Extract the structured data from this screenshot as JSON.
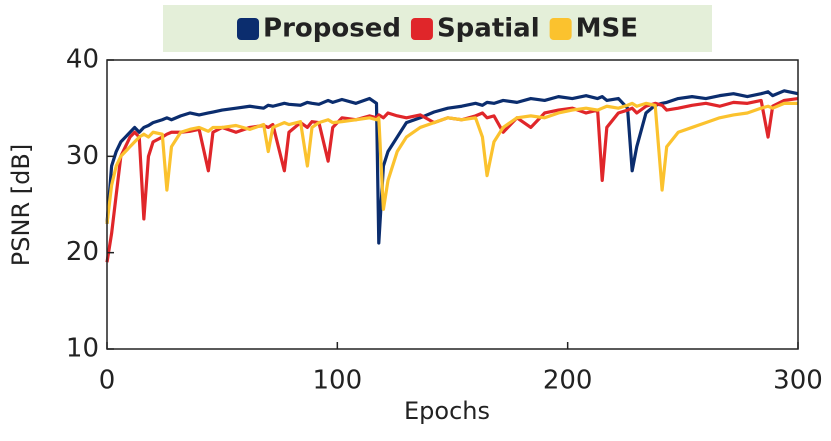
{
  "chart_data": {
    "type": "line",
    "xlabel": "Epochs",
    "ylabel": "PSNR [dB]",
    "legend": "top",
    "xlim": [
      0,
      300
    ],
    "xticks": [
      0,
      100,
      200,
      300
    ],
    "ylim": [
      10,
      40
    ],
    "yticks": [
      10,
      20,
      30,
      40
    ],
    "x": [
      0,
      2,
      4,
      6,
      8,
      10,
      12,
      14,
      16,
      18,
      20,
      24,
      26,
      28,
      32,
      36,
      40,
      44,
      46,
      50,
      56,
      62,
      68,
      70,
      72,
      77,
      79,
      84,
      87,
      89,
      92,
      96,
      98,
      102,
      108,
      114,
      117,
      118,
      120,
      122,
      126,
      130,
      136,
      142,
      148,
      154,
      160,
      163,
      165,
      168,
      172,
      178,
      184,
      190,
      196,
      202,
      208,
      213,
      215,
      217,
      222,
      226,
      228,
      230,
      234,
      238,
      241,
      243,
      248,
      254,
      260,
      266,
      272,
      278,
      284,
      287,
      289,
      294,
      300
    ],
    "series": [
      {
        "name": "Proposed",
        "color": "#0b2d6e",
        "values": [
          23,
          29,
          30.5,
          31.5,
          32,
          32.5,
          33,
          32.5,
          33,
          33.2,
          33.5,
          33.8,
          34,
          33.8,
          34.2,
          34.5,
          34.3,
          34.5,
          34.6,
          34.8,
          35,
          35.2,
          35,
          35.3,
          35.2,
          35.5,
          35.4,
          35.3,
          35.6,
          35.5,
          35.4,
          35.8,
          35.6,
          35.9,
          35.5,
          36,
          35.5,
          21,
          29,
          30.5,
          32,
          33.5,
          34,
          34.6,
          35,
          35.2,
          35.5,
          35.3,
          35.6,
          35.5,
          35.8,
          35.6,
          36,
          35.8,
          36.2,
          36,
          36.3,
          36,
          36.2,
          35.8,
          36,
          35,
          28.5,
          31,
          34.5,
          35.3,
          35.5,
          35.6,
          36,
          36.2,
          36,
          36.3,
          36.5,
          36.2,
          36.5,
          36.7,
          36.3,
          36.8,
          36.5
        ]
      },
      {
        "name": "Spatial",
        "color": "#e0262a",
        "values": [
          19,
          22,
          26,
          30,
          31,
          32,
          32.5,
          32,
          23.5,
          30,
          31.5,
          32,
          32.3,
          32.5,
          32.5,
          32.6,
          32.8,
          28.5,
          32.5,
          33,
          32.5,
          33,
          33.2,
          33,
          33.3,
          28.5,
          32.5,
          33.5,
          33,
          33.6,
          33.5,
          29.5,
          33,
          34,
          33.8,
          34.2,
          34,
          34.3,
          34,
          34.5,
          34.2,
          34,
          34.3,
          33.5,
          34,
          33.8,
          34.2,
          34.5,
          34,
          34.2,
          32.5,
          34,
          33,
          34.5,
          34.8,
          35,
          34.5,
          34.8,
          27.5,
          33,
          34.5,
          34.8,
          35,
          34.5,
          35.2,
          35.5,
          35.3,
          34.8,
          35,
          35.3,
          35.5,
          35.2,
          35.6,
          35.5,
          35.8,
          32,
          35.2,
          35.8,
          36
        ]
      },
      {
        "name": "MSE",
        "color": "#fbc22e",
        "values": [
          23,
          27,
          29,
          30,
          30.5,
          31,
          31.5,
          32,
          32.3,
          32,
          32.5,
          32.3,
          26.5,
          31,
          32.5,
          32.8,
          33,
          32.6,
          33,
          33,
          33.2,
          32.8,
          33.3,
          30.5,
          33,
          33.5,
          33.3,
          33.6,
          29,
          33,
          33.5,
          33.8,
          33.5,
          33.6,
          33.8,
          34,
          33.8,
          34,
          24.5,
          27.5,
          30.5,
          32,
          33,
          33.5,
          34,
          33.8,
          34,
          32,
          28,
          31.5,
          33,
          34,
          34.2,
          34,
          34.5,
          34.8,
          35,
          34.8,
          35,
          35.2,
          35,
          35.3,
          35.5,
          35.2,
          35.5,
          35.3,
          26.5,
          31,
          32.5,
          33,
          33.5,
          34,
          34.3,
          34.5,
          35,
          35.2,
          35,
          35.5,
          35.5
        ]
      }
    ]
  }
}
